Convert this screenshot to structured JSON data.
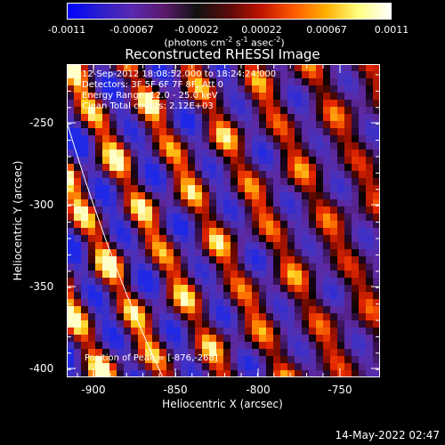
{
  "colorbar": {
    "tick_labels": [
      "-0.0011",
      "-0.00067",
      "-0.00022",
      "0.00022",
      "0.00067",
      "0.0011"
    ],
    "units_text": "(photons cm",
    "units_sup1": "-2",
    "units_mid1": " s",
    "units_sup2": "-1",
    "units_mid2": " asec",
    "units_sup3": "-2",
    "units_end": ")"
  },
  "title": "Reconstructed RHESSI Image",
  "info": {
    "line1": "12-Sep-2012 18:08:52.000 to 18:24:24.000",
    "line2": "Detectors: 3F 5F 6F 7F 8F, Att 0",
    "line3": "Energy Range: 12.0 - 25.0 keV",
    "line4": "Clean    Total counts: 2.12E+03"
  },
  "peak_text": "Position of Peak = [-876,-268]",
  "axes": {
    "xlabel": "Heliocentric X (arcsec)",
    "ylabel": "Heliocentric Y (arcsec)",
    "x_ticks": [
      "-900",
      "-850",
      "-800",
      "-750"
    ],
    "y_ticks": [
      "-250",
      "-300",
      "-350",
      "-400"
    ],
    "xlim": [
      -918,
      -727
    ],
    "ylim": [
      -407,
      -217
    ]
  },
  "timestamp": "14-May-2022 02:47",
  "colors": {
    "background": "#000000",
    "foreground": "#ffffff",
    "colormap": [
      "#0000ff",
      "#3c1e9c",
      "#6a2fa8",
      "#4a1a5a",
      "#000000",
      "#7a1010",
      "#e01a00",
      "#ff7a00",
      "#ffd000",
      "#ffffe0"
    ]
  }
}
